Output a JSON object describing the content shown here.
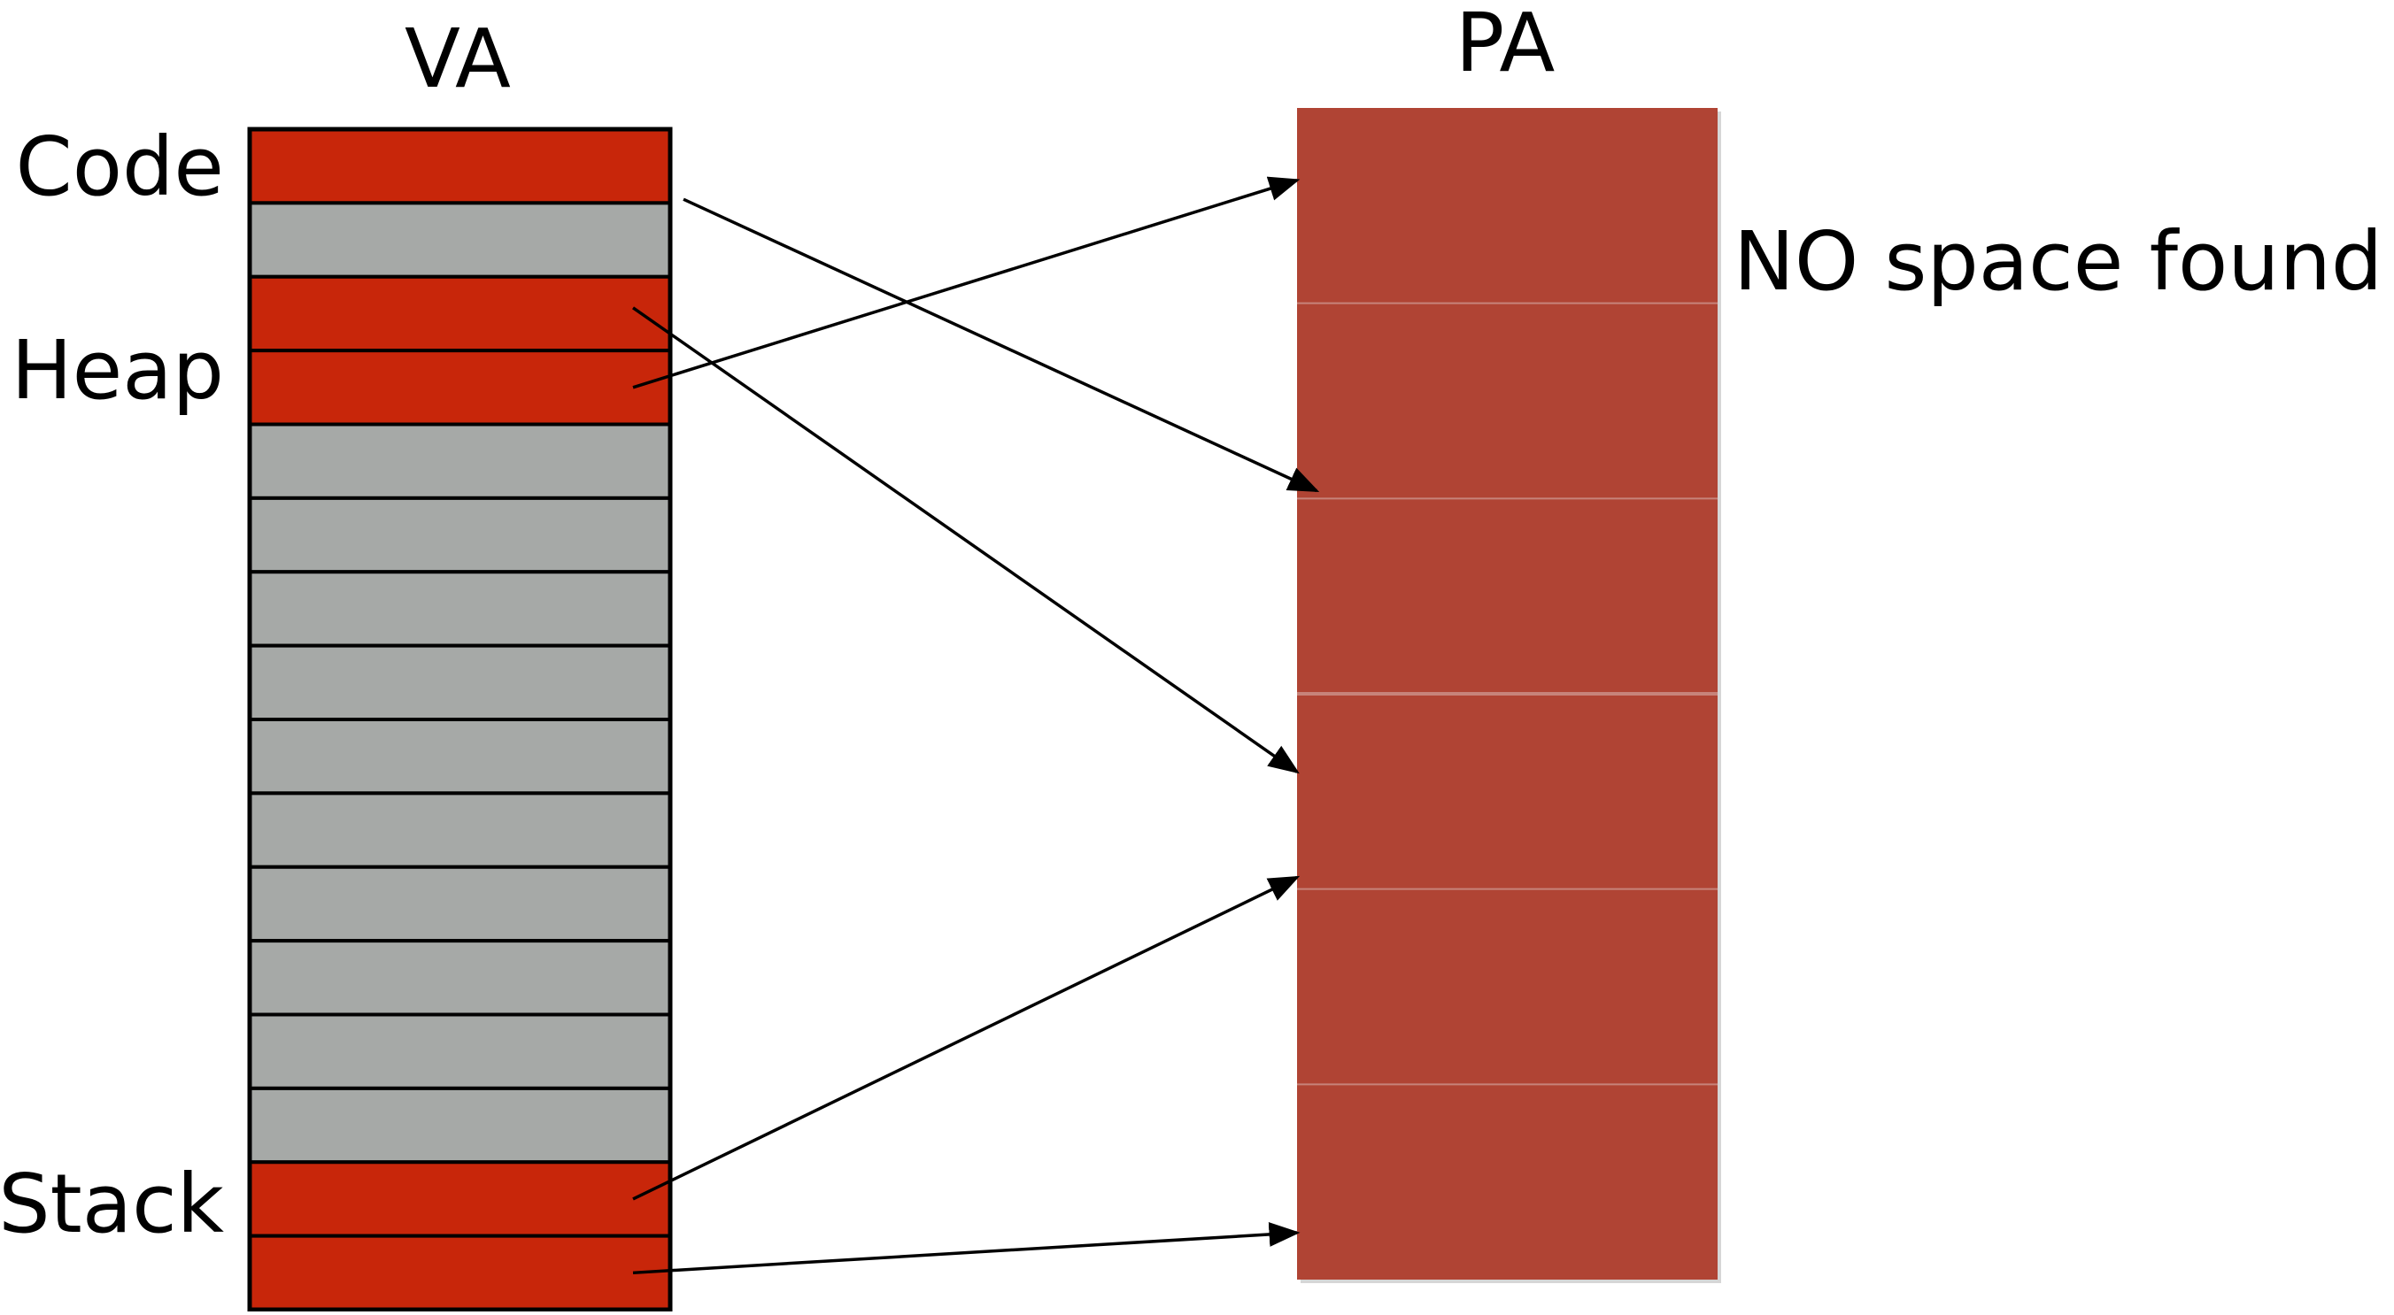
{
  "labels": {
    "va_title": "VA",
    "pa_title": "PA",
    "code": "Code",
    "heap": "Heap",
    "stack": "Stack",
    "no_space": "NO space found!"
  },
  "colors": {
    "used_page": "#c8260a",
    "free_page": "#a6a9a7",
    "physical_memory": "#b04434",
    "border": "#000000",
    "pa_divider": "#c7837a",
    "arrow": "#000000"
  },
  "va_pages": [
    "used",
    "free",
    "used",
    "used",
    "free",
    "free",
    "free",
    "free",
    "free",
    "free",
    "free",
    "free",
    "free",
    "free",
    "used",
    "used"
  ],
  "pa_blocks": 6,
  "mappings": [
    {
      "from_page": 0,
      "to_block": 2
    },
    {
      "from_page": 2,
      "to_block": 3
    },
    {
      "from_page": 3,
      "to_block": 0
    },
    {
      "from_page": 14,
      "to_block": 4
    },
    {
      "from_page": 15,
      "to_block": 5
    }
  ]
}
